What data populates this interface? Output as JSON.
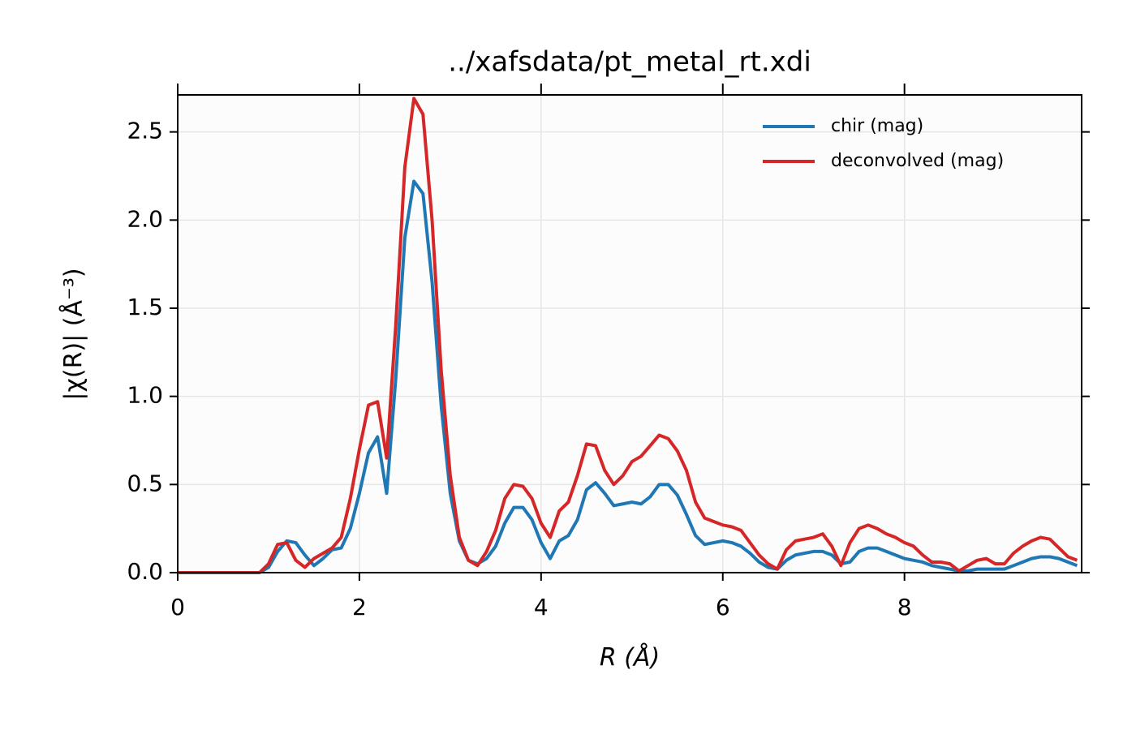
{
  "chart_data": {
    "type": "line",
    "title": "../xafsdata/pt_metal_rt.xdi",
    "x_label": "R (Å)",
    "y_label": "|χ(R)| (Å⁻³)",
    "x": [
      0,
      0.1,
      0.2,
      0.3,
      0.4,
      0.5,
      0.6,
      0.7,
      0.8,
      0.9,
      1.0,
      1.1,
      1.2,
      1.3,
      1.4,
      1.5,
      1.6,
      1.7,
      1.8,
      1.9,
      2.0,
      2.1,
      2.2,
      2.3,
      2.4,
      2.5,
      2.6,
      2.7,
      2.8,
      2.9,
      3.0,
      3.1,
      3.2,
      3.3,
      3.4,
      3.5,
      3.6,
      3.7,
      3.8,
      3.9,
      4.0,
      4.1,
      4.2,
      4.3,
      4.4,
      4.5,
      4.6,
      4.7,
      4.8,
      4.9,
      5.0,
      5.1,
      5.2,
      5.3,
      5.4,
      5.5,
      5.6,
      5.7,
      5.8,
      5.9,
      6.0,
      6.1,
      6.2,
      6.3,
      6.4,
      6.5,
      6.6,
      6.7,
      6.8,
      6.9,
      7.0,
      7.1,
      7.2,
      7.3,
      7.4,
      7.5,
      7.6,
      7.7,
      7.8,
      7.9,
      8.0,
      8.1,
      8.2,
      8.3,
      8.4,
      8.5,
      8.6,
      8.7,
      8.8,
      8.9,
      9.0,
      9.1,
      9.2,
      9.3,
      9.4,
      9.5,
      9.6,
      9.7,
      9.8,
      9.9
    ],
    "series": [
      {
        "name": "chir (mag)",
        "color": "#1f77b4",
        "values": [
          0,
          0,
          0,
          0,
          0,
          0,
          0,
          0,
          0,
          0,
          0.03,
          0.12,
          0.18,
          0.17,
          0.1,
          0.04,
          0.08,
          0.13,
          0.14,
          0.25,
          0.45,
          0.68,
          0.77,
          0.45,
          1.1,
          1.9,
          2.22,
          2.15,
          1.65,
          0.95,
          0.45,
          0.18,
          0.07,
          0.05,
          0.08,
          0.15,
          0.28,
          0.37,
          0.37,
          0.3,
          0.17,
          0.08,
          0.18,
          0.21,
          0.3,
          0.47,
          0.51,
          0.45,
          0.38,
          0.39,
          0.4,
          0.39,
          0.43,
          0.5,
          0.5,
          0.44,
          0.33,
          0.21,
          0.16,
          0.17,
          0.18,
          0.17,
          0.15,
          0.11,
          0.06,
          0.03,
          0.02,
          0.07,
          0.1,
          0.11,
          0.12,
          0.12,
          0.1,
          0.05,
          0.06,
          0.12,
          0.14,
          0.14,
          0.12,
          0.1,
          0.08,
          0.07,
          0.06,
          0.04,
          0.03,
          0.02,
          0.01,
          0.01,
          0.02,
          0.02,
          0.02,
          0.02,
          0.04,
          0.06,
          0.08,
          0.09,
          0.09,
          0.08,
          0.06,
          0.04
        ]
      },
      {
        "name": "deconvolved (mag)",
        "color": "#d62728",
        "values": [
          0,
          0,
          0,
          0,
          0,
          0,
          0,
          0,
          0,
          0,
          0.05,
          0.16,
          0.17,
          0.07,
          0.03,
          0.08,
          0.11,
          0.14,
          0.2,
          0.42,
          0.7,
          0.95,
          0.97,
          0.65,
          1.4,
          2.3,
          2.69,
          2.6,
          2.0,
          1.15,
          0.55,
          0.2,
          0.07,
          0.04,
          0.12,
          0.24,
          0.42,
          0.5,
          0.49,
          0.42,
          0.28,
          0.2,
          0.35,
          0.4,
          0.55,
          0.73,
          0.72,
          0.58,
          0.5,
          0.55,
          0.63,
          0.66,
          0.72,
          0.78,
          0.76,
          0.69,
          0.58,
          0.4,
          0.31,
          0.29,
          0.27,
          0.26,
          0.24,
          0.17,
          0.1,
          0.05,
          0.02,
          0.13,
          0.18,
          0.19,
          0.2,
          0.22,
          0.15,
          0.04,
          0.17,
          0.25,
          0.27,
          0.25,
          0.22,
          0.2,
          0.17,
          0.15,
          0.1,
          0.06,
          0.06,
          0.05,
          0.01,
          0.04,
          0.07,
          0.08,
          0.05,
          0.05,
          0.11,
          0.15,
          0.18,
          0.2,
          0.19,
          0.14,
          0.09,
          0.07
        ]
      }
    ],
    "xlim": [
      0,
      9.95
    ],
    "ylim": [
      0,
      2.71
    ],
    "xticks": [
      0,
      2,
      4,
      6,
      8
    ],
    "yticks": [
      {
        "value": 0,
        "label": "0.0"
      },
      0.5,
      {
        "value": 1,
        "label": "1.0"
      },
      1.5,
      {
        "value": 2,
        "label": "2.0"
      },
      2.5
    ],
    "grid": true,
    "legend": "upper right"
  }
}
